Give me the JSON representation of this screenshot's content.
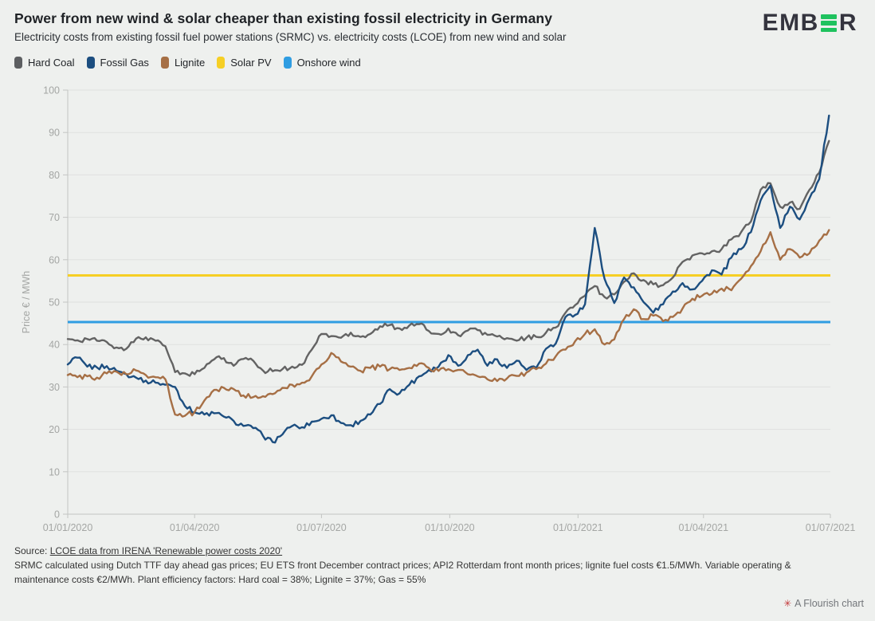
{
  "header": {
    "title": "Power from new wind & solar cheaper than existing fossil electricity in Germany",
    "subtitle": "Electricity costs from existing fossil fuel power stations (SRMC) vs. electricity costs (LCOE) from new wind and solar",
    "logo": {
      "prefix": "EMB",
      "suffix": "R",
      "green": "#1fc25e"
    }
  },
  "legend": [
    {
      "label": "Hard Coal",
      "color": "#5c5e61"
    },
    {
      "label": "Fossil Gas",
      "color": "#1c4e80"
    },
    {
      "label": "Lignite",
      "color": "#a66f45"
    },
    {
      "label": "Solar PV",
      "color": "#f6cf25"
    },
    {
      "label": "Onshore wind",
      "color": "#2f9de2"
    }
  ],
  "chart_data": {
    "type": "line",
    "title": "Power from new wind & solar cheaper than existing fossil electricity in Germany",
    "xlabel": "",
    "ylabel": "Price € / MWh",
    "ylim": [
      0,
      100
    ],
    "yticks": [
      0,
      10,
      20,
      30,
      40,
      50,
      60,
      70,
      80,
      90,
      100
    ],
    "grid": true,
    "legend_position": "top",
    "x_range_days": 547,
    "x_step_days": 7,
    "xticks": [
      {
        "label": "01/01/2020",
        "day": 0
      },
      {
        "label": "01/04/2020",
        "day": 91
      },
      {
        "label": "01/07/2020",
        "day": 182
      },
      {
        "label": "01/10/2020",
        "day": 274
      },
      {
        "label": "01/01/2021",
        "day": 366
      },
      {
        "label": "01/04/2021",
        "day": 456
      },
      {
        "label": "01/07/2021",
        "day": 547
      }
    ],
    "series": [
      {
        "name": "Hard Coal",
        "color": "#636363",
        "values": [
          41.3,
          41.0,
          41.3,
          40.9,
          40.6,
          39.3,
          39.0,
          41.4,
          41.7,
          40.9,
          39.6,
          33.5,
          33.2,
          33.0,
          34.5,
          36.5,
          36.8,
          35.0,
          36.6,
          36.2,
          33.9,
          33.7,
          34.2,
          34.8,
          35.2,
          38.8,
          42.5,
          42.0,
          41.6,
          42.8,
          41.8,
          42.5,
          44.3,
          44.6,
          43.8,
          44.5,
          44.8,
          43.2,
          42.5,
          43.8,
          42.2,
          43.3,
          43.4,
          42.3,
          41.9,
          41.5,
          40.9,
          41.6,
          41.8,
          42.8,
          44.0,
          47.5,
          49.3,
          51.5,
          53.8,
          51.2,
          51.8,
          54.8,
          56.8,
          55.2,
          54.2,
          54.0,
          55.8,
          59.5,
          61.0,
          61.5,
          62.0,
          62.5,
          64.8,
          66.5,
          69.0,
          76.5,
          78.0,
          72.5,
          73.5,
          72.0,
          76.5,
          80.5,
          88.0
        ]
      },
      {
        "name": "Fossil Gas",
        "color": "#1c4e80",
        "values": [
          35.3,
          36.9,
          34.8,
          34.6,
          34.9,
          33.8,
          33.0,
          32.2,
          31.5,
          31.0,
          30.5,
          30.0,
          25.5,
          24.0,
          23.5,
          23.8,
          23.0,
          22.0,
          20.8,
          20.3,
          18.5,
          17.0,
          18.8,
          20.8,
          20.5,
          21.8,
          22.5,
          23.3,
          21.5,
          21.0,
          22.0,
          23.5,
          26.0,
          29.5,
          28.5,
          30.5,
          32.5,
          34.0,
          34.8,
          37.5,
          35.0,
          37.5,
          38.8,
          35.0,
          36.5,
          34.5,
          36.2,
          34.0,
          34.5,
          39.0,
          40.2,
          46.5,
          47.0,
          49.5,
          67.5,
          55.5,
          49.8,
          55.8,
          53.5,
          50.0,
          47.5,
          49.5,
          52.5,
          54.5,
          53.0,
          55.0,
          57.5,
          56.5,
          60.5,
          62.5,
          66.5,
          74.0,
          77.5,
          67.5,
          72.5,
          69.5,
          74.5,
          79.0,
          94.0
        ]
      },
      {
        "name": "Lignite",
        "color": "#a66f45",
        "values": [
          32.8,
          32.3,
          32.5,
          32.2,
          33.2,
          33.6,
          33.0,
          33.9,
          32.8,
          32.3,
          31.8,
          23.5,
          23.2,
          24.1,
          26.8,
          29.3,
          29.8,
          29.5,
          28.0,
          27.6,
          27.8,
          28.3,
          29.8,
          30.5,
          31.0,
          32.5,
          35.3,
          38.0,
          36.0,
          34.8,
          33.8,
          34.5,
          34.8,
          34.2,
          34.0,
          34.5,
          35.5,
          34.5,
          33.8,
          34.2,
          34.0,
          33.0,
          32.5,
          31.8,
          31.4,
          32.0,
          32.6,
          33.4,
          34.2,
          35.5,
          37.2,
          38.8,
          40.8,
          42.5,
          43.6,
          40.0,
          41.2,
          46.0,
          48.3,
          46.0,
          46.8,
          45.5,
          46.5,
          48.5,
          50.8,
          51.5,
          52.0,
          53.2,
          52.8,
          55.5,
          58.5,
          62.0,
          66.5,
          60.0,
          62.5,
          60.5,
          61.5,
          64.5,
          67.0
        ]
      },
      {
        "name": "Solar PV",
        "color": "#f6cf25",
        "type": "hline",
        "value": 56.3
      },
      {
        "name": "Onshore wind",
        "color": "#2f9de2",
        "type": "hline",
        "value": 45.3
      }
    ]
  },
  "footer": {
    "source_prefix": "Source: ",
    "source_link": "LCOE data from IRENA 'Renewable power costs 2020'",
    "note": "SRMC calculated using Dutch TTF day ahead gas prices; EU ETS front December contract prices; API2 Rotterdam front month prices; lignite fuel costs €1.5/MWh. Variable operating & maintenance costs €2/MWh. Plant efficiency factors: Hard coal = 38%; Lignite = 37%; Gas = 55%"
  },
  "attribution": {
    "icon": "✳",
    "label": "A Flourish chart"
  }
}
